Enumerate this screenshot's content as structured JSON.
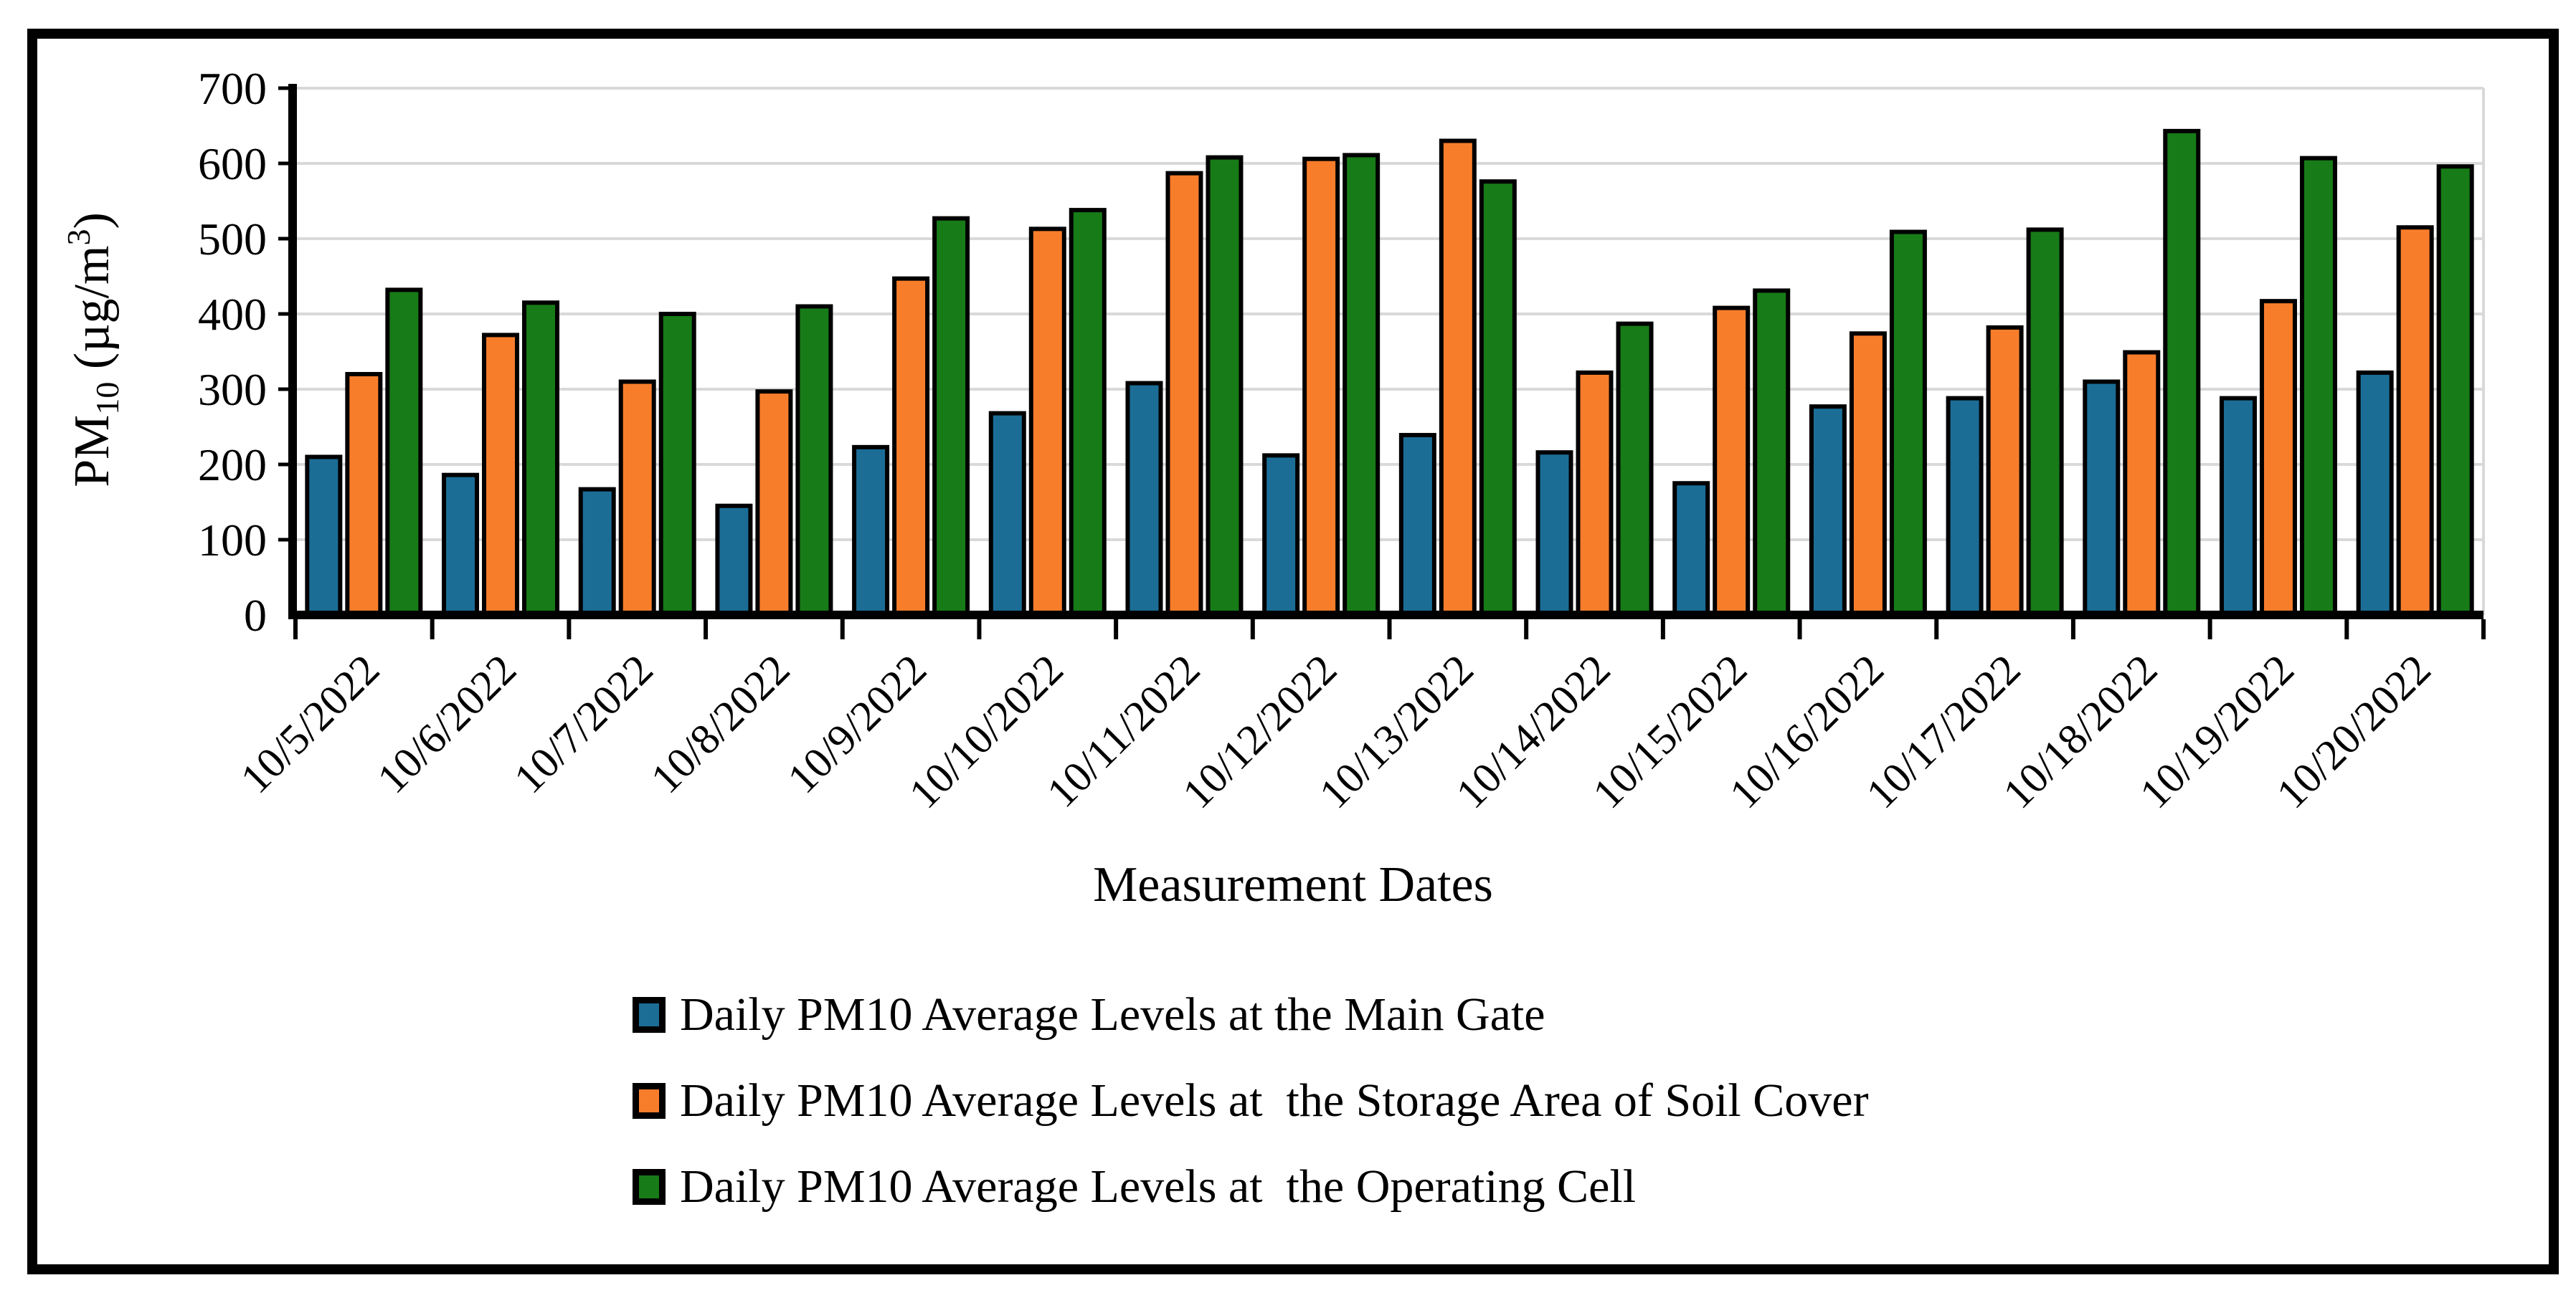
{
  "figure": {
    "background": "#ffffff",
    "frame_border_color": "#000000"
  },
  "chart_data": {
    "type": "bar",
    "title": "",
    "xlabel": "Measurement Dates",
    "ylabel": "PM10 (µg/m³)",
    "ylabel_parts": {
      "base1": "PM",
      "sub": "10",
      "base2": " (µg/m",
      "sup": "3",
      "base3": ")"
    },
    "ylim": [
      0,
      700
    ],
    "ytick_step": 100,
    "grid": true,
    "legend_position": "bottom-left",
    "categories": [
      "10/5/2022",
      "10/6/2022",
      "10/7/2022",
      "10/8/2022",
      "10/9/2022",
      "10/10/2022",
      "10/11/2022",
      "10/12/2022",
      "10/13/2022",
      "10/14/2022",
      "10/15/2022",
      "10/16/2022",
      "10/17/2022",
      "10/18/2022",
      "10/19/2022",
      "10/20/2022"
    ],
    "series": [
      {
        "name": "Daily PM10 Average Levels at the Main Gate",
        "key": "main-gate",
        "color": "#1B6D96",
        "values": [
          210,
          186,
          167,
          145,
          223,
          268,
          308,
          212,
          239,
          216,
          175,
          277,
          288,
          310,
          288,
          322
        ]
      },
      {
        "name": "Daily PM10 Average Levels at  the Storage Area of Soil Cover",
        "key": "storage-area-soil-cover",
        "color": "#F87D2B",
        "values": [
          320,
          372,
          310,
          297,
          447,
          513,
          587,
          606,
          630,
          322,
          408,
          374,
          382,
          349,
          417,
          515
        ]
      },
      {
        "name": "Daily PM10 Average Levels at  the Operating Cell",
        "key": "operating-cell",
        "color": "#177B17",
        "values": [
          432,
          415,
          400,
          410,
          527,
          538,
          608,
          611,
          576,
          387,
          431,
          509,
          512,
          643,
          607,
          596
        ]
      }
    ],
    "colors": {
      "gridline": "#D9D9D9",
      "axis": "#000000",
      "bar_outline": "#000000"
    }
  }
}
